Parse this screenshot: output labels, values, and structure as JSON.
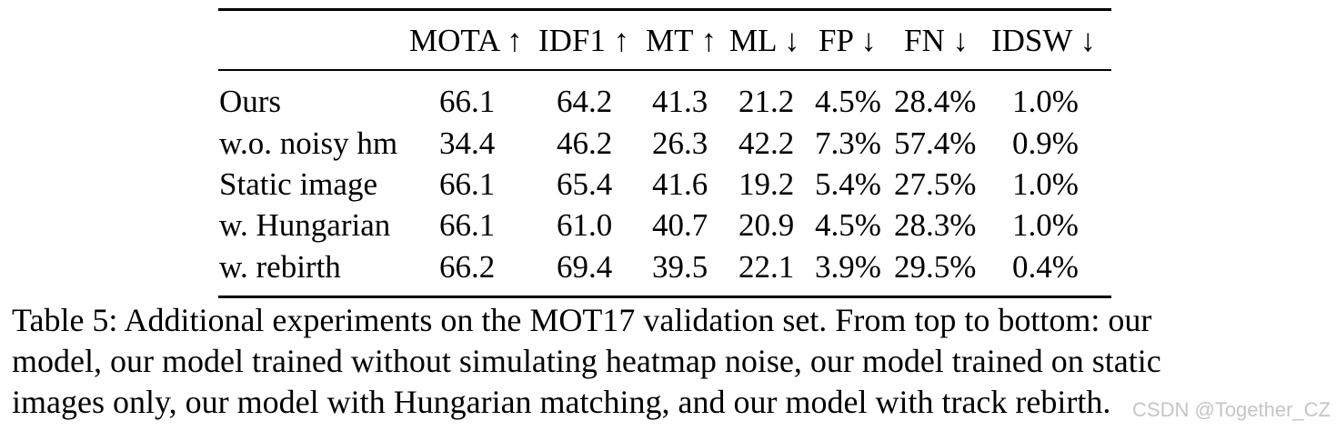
{
  "table": {
    "headers": [
      "MOTA ↑",
      "IDF1 ↑",
      "MT ↑",
      "ML ↓",
      "FP ↓",
      "FN ↓",
      "IDSW ↓"
    ],
    "rows": [
      {
        "label": "Ours",
        "values": [
          "66.1",
          "64.2",
          "41.3",
          "21.2",
          "4.5%",
          "28.4%",
          "1.0%"
        ]
      },
      {
        "label": "w.o. noisy hm",
        "values": [
          "34.4",
          "46.2",
          "26.3",
          "42.2",
          "7.3%",
          "57.4%",
          "0.9%"
        ]
      },
      {
        "label": "Static image",
        "values": [
          "66.1",
          "65.4",
          "41.6",
          "19.2",
          "5.4%",
          "27.5%",
          "1.0%"
        ]
      },
      {
        "label": "w. Hungarian",
        "values": [
          "66.1",
          "61.0",
          "40.7",
          "20.9",
          "4.5%",
          "28.3%",
          "1.0%"
        ]
      },
      {
        "label": "w. rebirth",
        "values": [
          "66.2",
          "69.4",
          "39.5",
          "22.1",
          "3.9%",
          "29.5%",
          "0.4%"
        ]
      }
    ]
  },
  "caption": {
    "lines": [
      "Table 5: Additional experiments on the MOT17 validation set. From top to bottom: our",
      "model, our model trained without simulating heatmap noise, our model trained on static",
      "images only, our model with Hungarian matching, and our model with track rebirth."
    ]
  },
  "watermark": "CSDN @Together_CZ"
}
